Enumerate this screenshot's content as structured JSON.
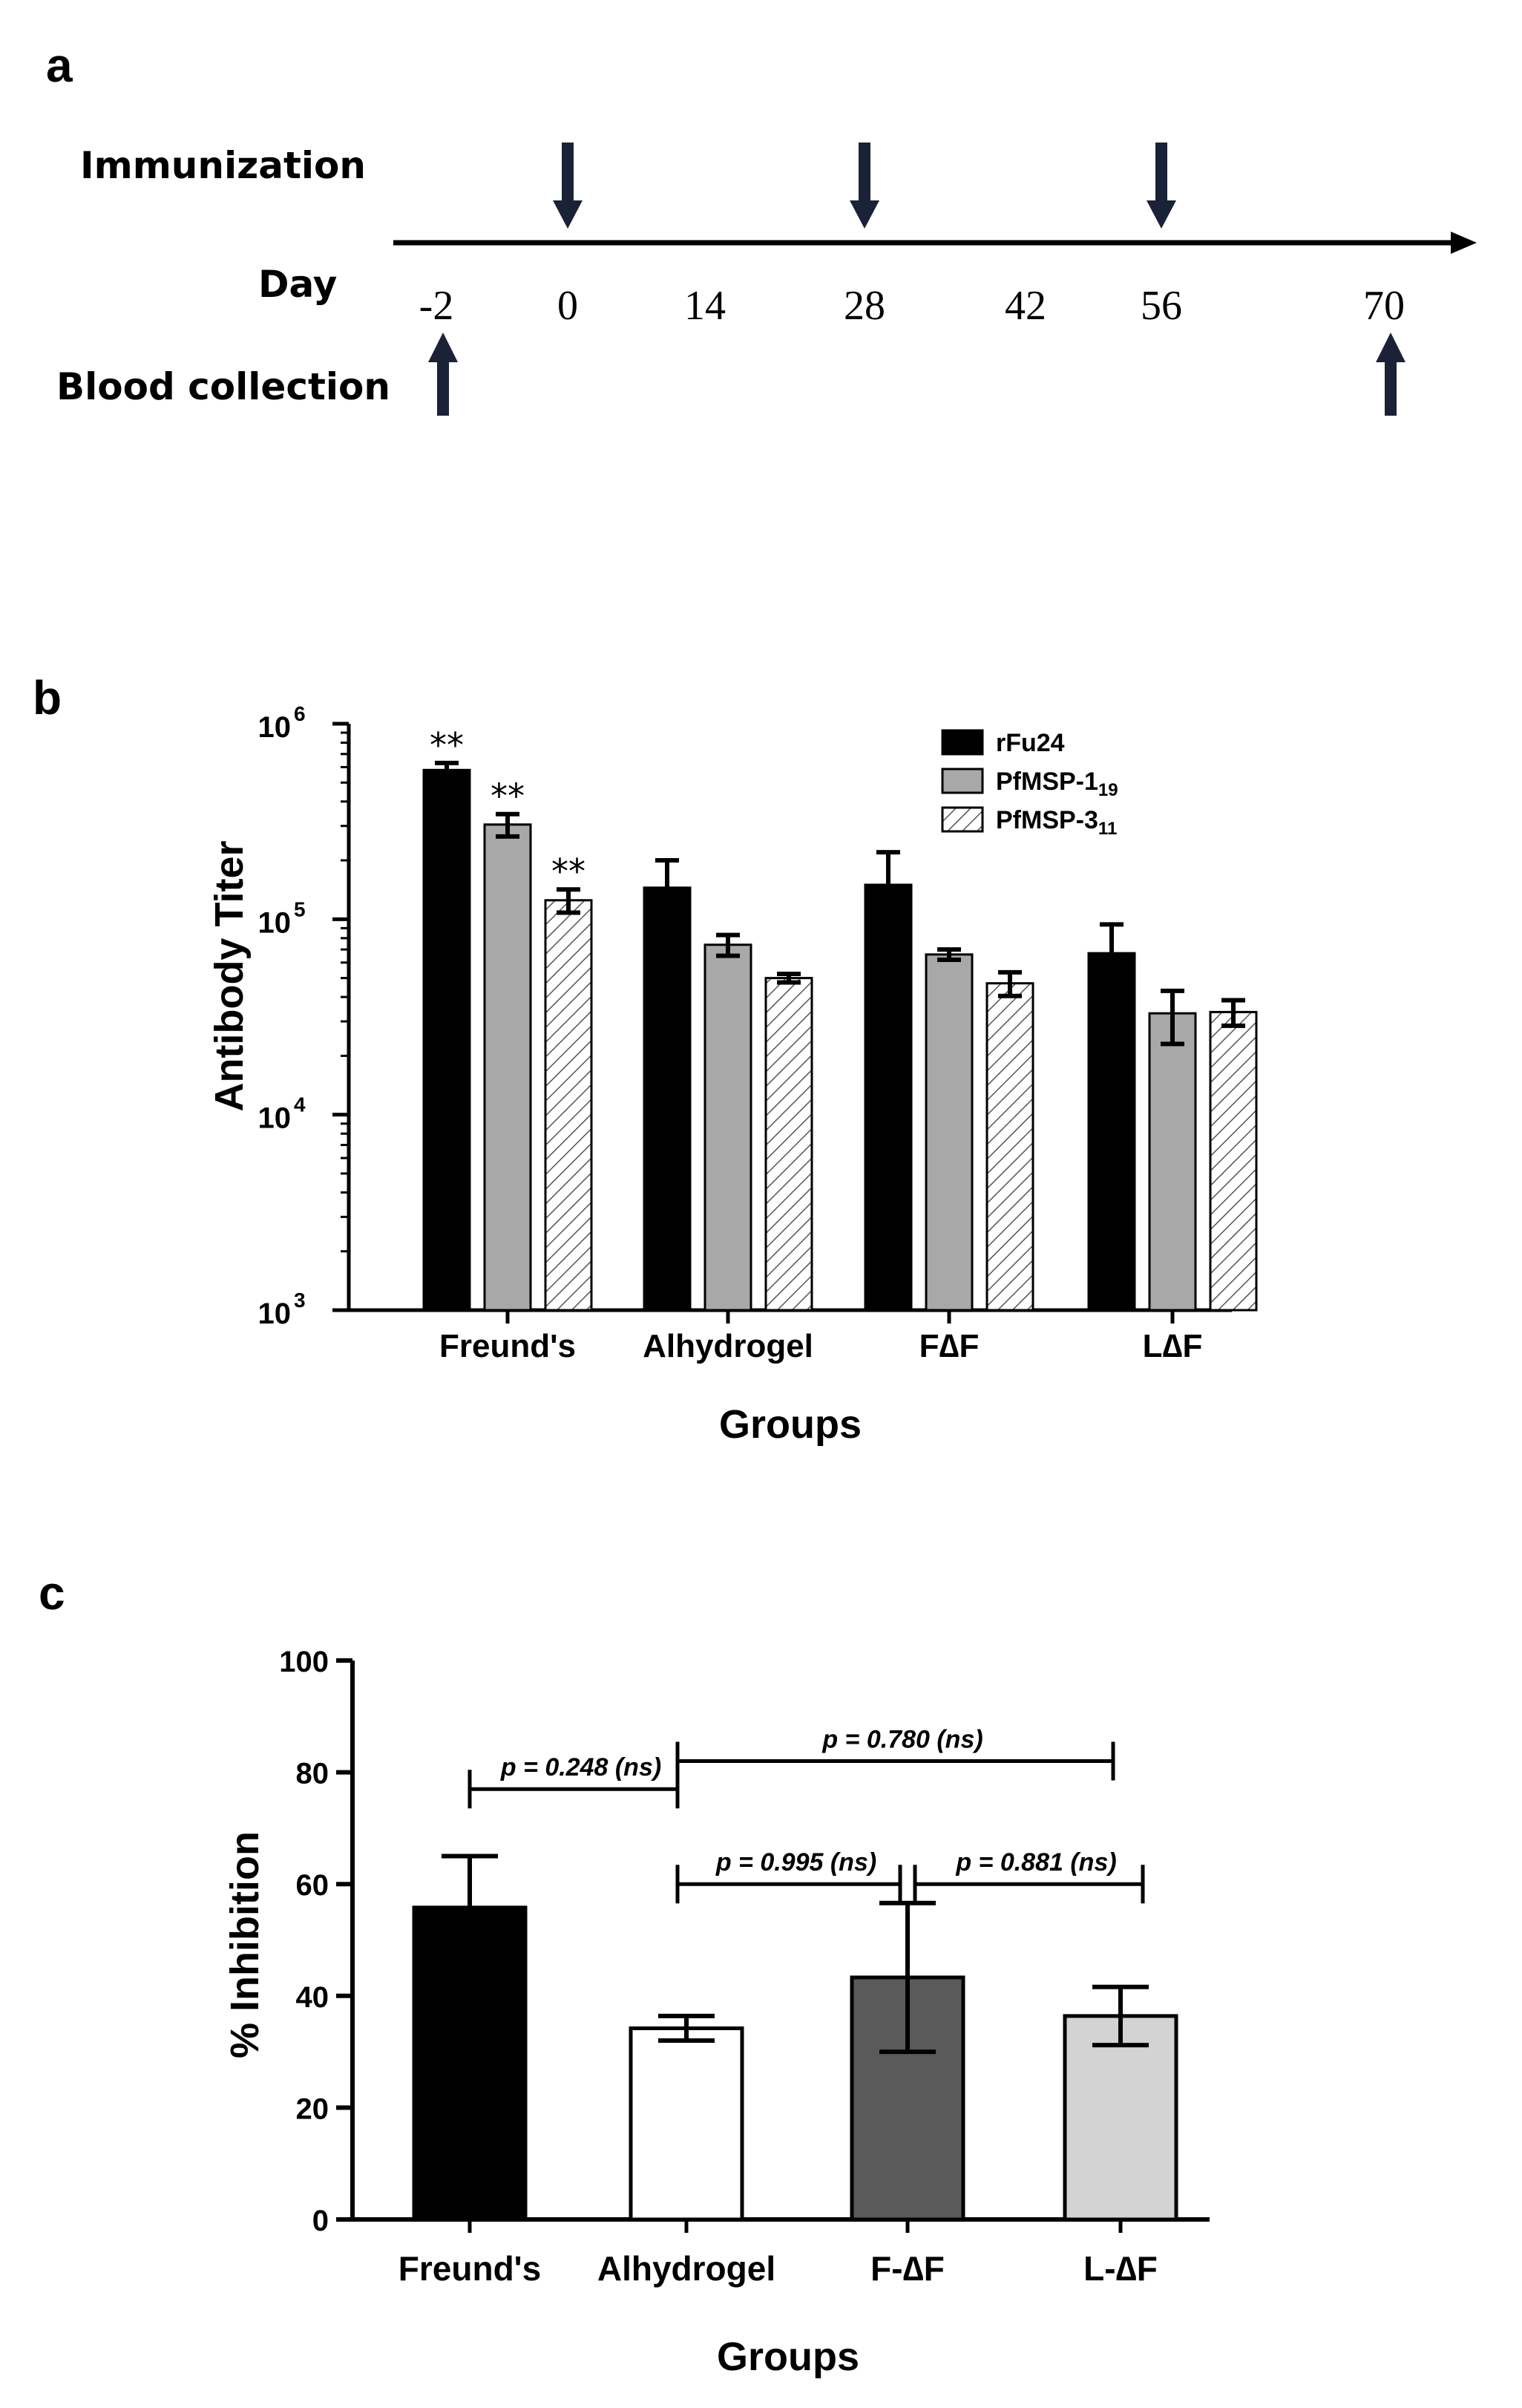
{
  "panel_a": {
    "letter": "a",
    "immunization_label": "Immunization",
    "day_label": "Day",
    "blood_label": "Blood collection",
    "days": [
      "-2",
      "0",
      "14",
      "28",
      "42",
      "56",
      "70"
    ],
    "immunization_days": [
      "0",
      "28",
      "56"
    ],
    "blood_days": [
      "-2",
      "70"
    ],
    "arrow_color": "#1a2238"
  },
  "panel_b": {
    "letter": "b",
    "ylabel": "Antibody Titer",
    "xlabel": "Groups",
    "ytick_base": "10",
    "ytick_exponents": [
      "3",
      "4",
      "5",
      "6"
    ],
    "categories": [
      "Freund's",
      "Alhydrogel",
      "F∆F",
      "L∆F"
    ],
    "legend": [
      {
        "name": "rFu24",
        "sub": ""
      },
      {
        "name": "PfMSP-1",
        "sub": "19"
      },
      {
        "name": "PfMSP-3",
        "sub": "11"
      }
    ],
    "significance_mark": "**"
  },
  "panel_c": {
    "letter": "c",
    "ylabel": "% Inhibition",
    "xlabel": "Groups",
    "categories": [
      "Freund's",
      "Alhydrogel",
      "F-∆F",
      "L-∆F"
    ],
    "yticks": [
      "0",
      "20",
      "40",
      "60",
      "80",
      "100"
    ],
    "pvalues": [
      "p = 0.248 (ns)",
      "p = 0.995 (ns)",
      "p = 0.881 (ns)",
      "p = 0.780 (ns)"
    ]
  },
  "colors": {
    "black": "#000000",
    "gray": "#a8a8a8",
    "dark_gray": "#5a5a5a",
    "light_gray": "#d3d3d3",
    "white": "#ffffff"
  },
  "chart_data": [
    {
      "type": "bar",
      "title": "",
      "xlabel": "Groups",
      "ylabel": "Antibody Titer",
      "yscale": "log",
      "ylim": [
        1000,
        1000000
      ],
      "legend_position": "top-right",
      "categories": [
        "Freund's",
        "Alhydrogel",
        "F∆F",
        "L∆F"
      ],
      "series": [
        {
          "name": "rFu24",
          "fill": "solid-black",
          "values": [
            580000,
            145000,
            150000,
            67000
          ],
          "errors": [
            50000,
            55000,
            70000,
            27000
          ],
          "significance": [
            "**",
            "",
            "",
            ""
          ]
        },
        {
          "name": "PfMSP-1 19",
          "fill": "solid-gray",
          "values": [
            305000,
            74000,
            66000,
            33000
          ],
          "errors": [
            40000,
            9000,
            4000,
            10000
          ],
          "significance": [
            "**",
            "",
            "",
            ""
          ]
        },
        {
          "name": "PfMSP-3 11",
          "fill": "hatched",
          "values": [
            125000,
            50000,
            47000,
            33500
          ],
          "errors": [
            17000,
            2500,
            6500,
            5000
          ],
          "significance": [
            "**",
            "",
            "",
            ""
          ]
        }
      ]
    },
    {
      "type": "bar",
      "title": "",
      "xlabel": "Groups",
      "ylabel": "% Inhibition",
      "ylim": [
        0,
        100
      ],
      "categories": [
        "Freund's",
        "Alhydrogel",
        "F-∆F",
        "L-∆F"
      ],
      "series": [
        {
          "values": [
            55.8,
            34.2,
            43.3,
            36.4
          ],
          "errors": [
            9.2,
            2.2,
            13.3,
            5.2
          ]
        }
      ],
      "bar_colors": [
        "#000000",
        "#ffffff",
        "#5a5a5a",
        "#d3d3d3"
      ],
      "comparisons": [
        {
          "groups": [
            "Freund's",
            "Alhydrogel"
          ],
          "label": "p = 0.248 (ns)",
          "at": 77.0
        },
        {
          "groups": [
            "Alhydrogel",
            "F-∆F"
          ],
          "label": "p = 0.995 (ns)",
          "at": 60.0
        },
        {
          "groups": [
            "F-∆F",
            "L-∆F"
          ],
          "label": "p = 0.881 (ns)",
          "at": 60.0
        },
        {
          "groups": [
            "Alhydrogel",
            "L-∆F"
          ],
          "label": "p = 0.780 (ns)",
          "at": 82.0
        }
      ]
    }
  ]
}
